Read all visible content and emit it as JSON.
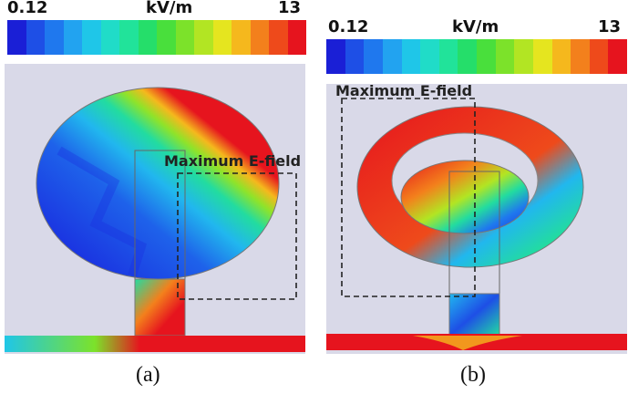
{
  "panels": [
    {
      "id": "a",
      "scale_min": "0.12",
      "scale_unit": "kV/m",
      "scale_max": "13",
      "annotation": "Maximum E-field",
      "caption": "(a)",
      "structure": "circular patch antenna"
    },
    {
      "id": "b",
      "scale_min": "0.12",
      "scale_unit": "kV/m",
      "scale_max": "13",
      "annotation": "Maximum E-field",
      "caption": "(b)",
      "structure": "patch with concentric ring slot"
    }
  ],
  "colormap": [
    "#1a1fd6",
    "#1e4fe6",
    "#1f78ee",
    "#22a3f0",
    "#1fc6e8",
    "#20dcc8",
    "#21e39a",
    "#25de6a",
    "#49df3c",
    "#7ce22a",
    "#b2e523",
    "#e5e51f",
    "#f5b81d",
    "#f3801c",
    "#ee4a1b",
    "#e6141e"
  ]
}
